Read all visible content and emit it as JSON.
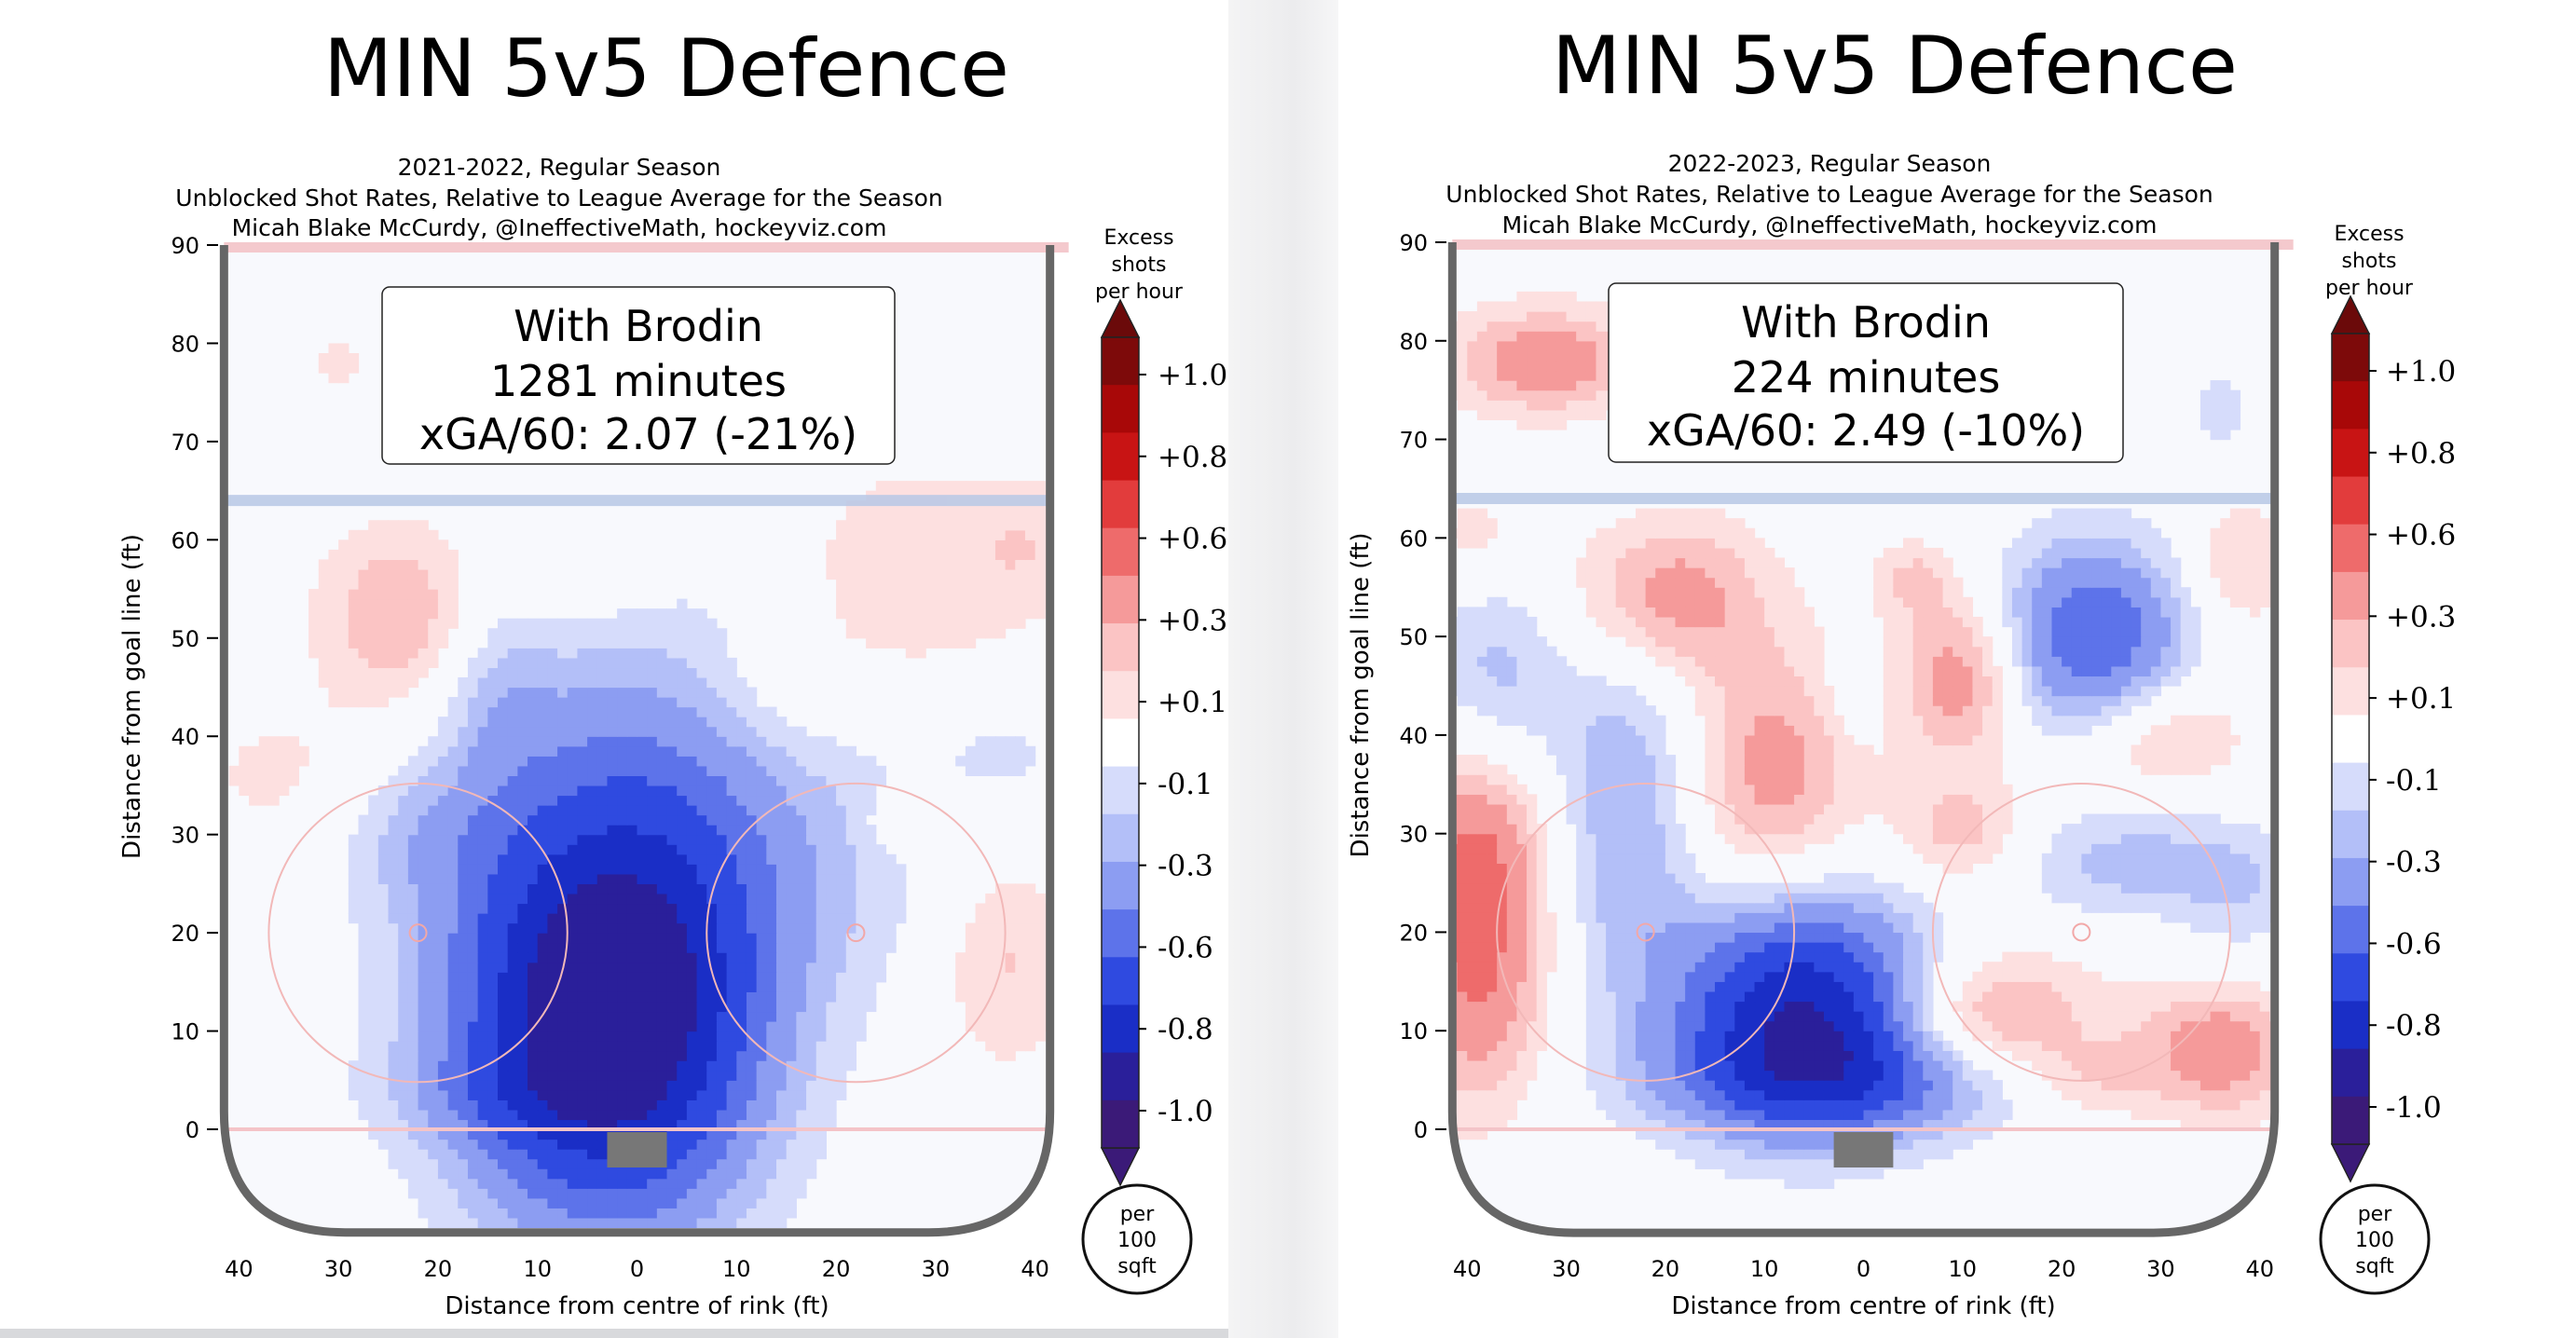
{
  "colors": {
    "red_scale": [
      "#fde0e0",
      "#fbc4c4",
      "#f59a9a",
      "#ee6b6b",
      "#e23c3c",
      "#c81414",
      "#a80808",
      "#7d0a0a"
    ],
    "blue_scale": [
      "#d6dcfb",
      "#b3bff8",
      "#8c9df2",
      "#5d73ea",
      "#2f4ae0",
      "#1a2ec6",
      "#2a1f9a",
      "#3b1a78"
    ],
    "neutral": "#ffffff",
    "rink_line": "#666666",
    "goal_line": "#f4c4c8",
    "blue_line": "#b8c8e6",
    "goal_net": "#777777"
  },
  "charts": [
    {
      "title": "MIN 5v5 Defence",
      "subtitle_lines": [
        "2021-2022, Regular Season",
        "Unblocked Shot Rates, Relative to League Average for the Season",
        "Micah Blake McCurdy, @IneffectiveMath, hockeyviz.com"
      ],
      "box_lines": [
        "With Brodin",
        "1281 minutes",
        "xGA/60: 2.07 (-21%)"
      ],
      "ylabel": "Distance from goal line (ft)",
      "xlabel": "Distance from centre of rink (ft)",
      "y_ticks": [
        "90",
        "80",
        "70",
        "60",
        "50",
        "40",
        "30",
        "20",
        "10",
        "0"
      ],
      "x_ticks": [
        "40",
        "30",
        "20",
        "10",
        "0",
        "10",
        "20",
        "30",
        "40"
      ],
      "colorbar_title": [
        "Excess",
        "shots",
        "per hour"
      ],
      "colorbar_ticks": [
        "+1.0",
        "+0.8",
        "+0.6",
        "+0.3",
        "+0.1",
        "-0.1",
        "-0.3",
        "-0.6",
        "-0.8",
        "-1.0"
      ],
      "unit_badge": [
        "per",
        "100",
        "sqft"
      ]
    },
    {
      "title": "MIN 5v5 Defence",
      "subtitle_lines": [
        "2022-2023, Regular Season",
        "Unblocked Shot Rates, Relative to League Average for the Season",
        "Micah Blake McCurdy, @IneffectiveMath, hockeyviz.com"
      ],
      "box_lines": [
        "With Brodin",
        "224 minutes",
        "xGA/60: 2.49 (-10%)"
      ],
      "ylabel": "Distance from goal line (ft)",
      "xlabel": "Distance from centre of rink (ft)",
      "y_ticks": [
        "90",
        "80",
        "70",
        "60",
        "50",
        "40",
        "30",
        "20",
        "10",
        "0"
      ],
      "x_ticks": [
        "40",
        "30",
        "20",
        "10",
        "0",
        "10",
        "20",
        "30",
        "40"
      ],
      "colorbar_title": [
        "Excess",
        "shots",
        "per hour"
      ],
      "colorbar_ticks": [
        "+1.0",
        "+0.8",
        "+0.6",
        "+0.3",
        "+0.1",
        "-0.1",
        "-0.3",
        "-0.6",
        "-0.8",
        "-1.0"
      ],
      "unit_badge": [
        "per",
        "100",
        "sqft"
      ]
    }
  ],
  "chart_data": [
    {
      "type": "heatmap",
      "title": "MIN 5v5 Defence",
      "xlabel": "Distance from centre of rink (ft)",
      "ylabel": "Distance from goal line (ft)",
      "xlim": [
        -42,
        42
      ],
      "ylim": [
        -10,
        90
      ],
      "value_range": [
        -1.0,
        1.0
      ],
      "grid": false,
      "blobs": [
        {
          "x": -3,
          "y": 10,
          "sx": 10,
          "sy": 14,
          "v": -1.0
        },
        {
          "x": -6,
          "y": 25,
          "sx": 12,
          "sy": 18,
          "v": -0.35
        },
        {
          "x": 6,
          "y": 28,
          "sx": 9,
          "sy": 18,
          "v": -0.22
        },
        {
          "x": -22,
          "y": 30,
          "sx": 6,
          "sy": 5,
          "v": -0.13
        },
        {
          "x": -14,
          "y": 4,
          "sx": 9,
          "sy": 3.5,
          "v": -0.14
        },
        {
          "x": 22,
          "y": 28,
          "sx": 9,
          "sy": 11,
          "v": -0.12
        },
        {
          "x": -14,
          "y": 45,
          "sx": 3.5,
          "sy": 7,
          "v": -0.14
        },
        {
          "x": 37,
          "y": 38,
          "sx": 4,
          "sy": 2.5,
          "v": -0.14
        },
        {
          "x": -24,
          "y": 52,
          "sx": 6,
          "sy": 7,
          "v": 0.32
        },
        {
          "x": -36,
          "y": 36,
          "sx": 7,
          "sy": 6,
          "v": 0.13
        },
        {
          "x": -5,
          "y": 58,
          "sx": 7,
          "sy": 5,
          "v": 0.14
        },
        {
          "x": 28,
          "y": 57,
          "sx": 9,
          "sy": 8,
          "v": 0.2
        },
        {
          "x": 14,
          "y": 45,
          "sx": 7,
          "sy": 5,
          "v": 0.12
        },
        {
          "x": 37,
          "y": 17,
          "sx": 5,
          "sy": 8,
          "v": 0.22
        },
        {
          "x": 26,
          "y": 31,
          "sx": 2.2,
          "sy": 2.2,
          "v": 0.14
        },
        {
          "x": -30,
          "y": 78,
          "sx": 1.8,
          "sy": 1.8,
          "v": 0.16
        },
        {
          "x": 40,
          "y": 60,
          "sx": 4,
          "sy": 5,
          "v": 0.12
        }
      ]
    },
    {
      "type": "heatmap",
      "title": "MIN 5v5 Defence",
      "xlabel": "Distance from centre of rink (ft)",
      "ylabel": "Distance from goal line (ft)",
      "xlim": [
        -42,
        42
      ],
      "ylim": [
        -10,
        90
      ],
      "value_range": [
        -1.0,
        1.0
      ],
      "grid": false,
      "blobs": [
        {
          "x": -6,
          "y": 12,
          "sx": 9,
          "sy": 8,
          "v": -1.0
        },
        {
          "x": 0,
          "y": 5,
          "sx": 14,
          "sy": 4,
          "v": -0.4
        },
        {
          "x": 23,
          "y": 50,
          "sx": 7,
          "sy": 7,
          "v": -0.6
        },
        {
          "x": -24,
          "y": 33,
          "sx": 5,
          "sy": 14,
          "v": -0.3
        },
        {
          "x": -37,
          "y": 46,
          "sx": 5,
          "sy": 8,
          "v": -0.25
        },
        {
          "x": 28,
          "y": 27,
          "sx": 10,
          "sy": 4,
          "v": -0.25
        },
        {
          "x": 38,
          "y": 22,
          "sx": 4,
          "sy": 5,
          "v": -0.12
        },
        {
          "x": 36,
          "y": 73,
          "sx": 1.5,
          "sy": 3,
          "v": -0.2
        },
        {
          "x": -20,
          "y": 54,
          "sx": 7,
          "sy": 6,
          "v": 0.4
        },
        {
          "x": 10,
          "y": 46,
          "sx": 4.5,
          "sy": 6,
          "v": 0.42
        },
        {
          "x": 5,
          "y": 56,
          "sx": 3,
          "sy": 3,
          "v": 0.2
        },
        {
          "x": -9,
          "y": 36,
          "sx": 6,
          "sy": 9,
          "v": 0.36
        },
        {
          "x": -32,
          "y": 78,
          "sx": 7,
          "sy": 4,
          "v": 0.4
        },
        {
          "x": -39,
          "y": 29,
          "sx": 5,
          "sy": 8,
          "v": 0.42
        },
        {
          "x": -39,
          "y": 14,
          "sx": 5,
          "sy": 9,
          "v": 0.4
        },
        {
          "x": 12,
          "y": 11,
          "sx": 8,
          "sy": 5,
          "v": 0.42
        },
        {
          "x": 36,
          "y": 8,
          "sx": 6,
          "sy": 5,
          "v": 0.4
        },
        {
          "x": 30,
          "y": 40,
          "sx": 6,
          "sy": 4,
          "v": 0.28
        },
        {
          "x": 10,
          "y": 30,
          "sx": 5,
          "sy": 4,
          "v": 0.28
        },
        {
          "x": 38,
          "y": 57,
          "sx": 4,
          "sy": 5,
          "v": 0.22
        },
        {
          "x": -39,
          "y": 60,
          "sx": 4,
          "sy": 4,
          "v": 0.16
        },
        {
          "x": 23,
          "y": 5,
          "sx": 5,
          "sy": 3,
          "v": 0.2
        },
        {
          "x": -1,
          "y": 44,
          "sx": 2,
          "sy": 3,
          "v": -0.13
        }
      ]
    }
  ]
}
